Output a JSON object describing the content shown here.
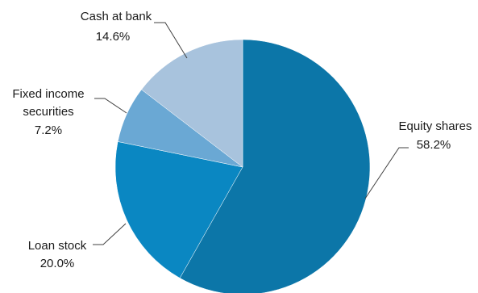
{
  "chart_data": {
    "type": "pie",
    "title": "",
    "start_angle_deg": 0,
    "direction": "clockwise",
    "legend": "none",
    "slices": [
      {
        "label": "Equity shares",
        "value": 58.2,
        "value_label": "58.2%",
        "color": "#0c76a8"
      },
      {
        "label": "Loan stock",
        "value": 20.0,
        "value_label": "20.0%",
        "color": "#0a87c2"
      },
      {
        "label": "Fixed income",
        "label_line2": "securities",
        "value": 7.2,
        "value_label": "7.2%",
        "color": "#6aa8d4"
      },
      {
        "label": "Cash at bank",
        "value": 14.6,
        "value_label": "14.6%",
        "color": "#a8c3dd"
      }
    ]
  }
}
